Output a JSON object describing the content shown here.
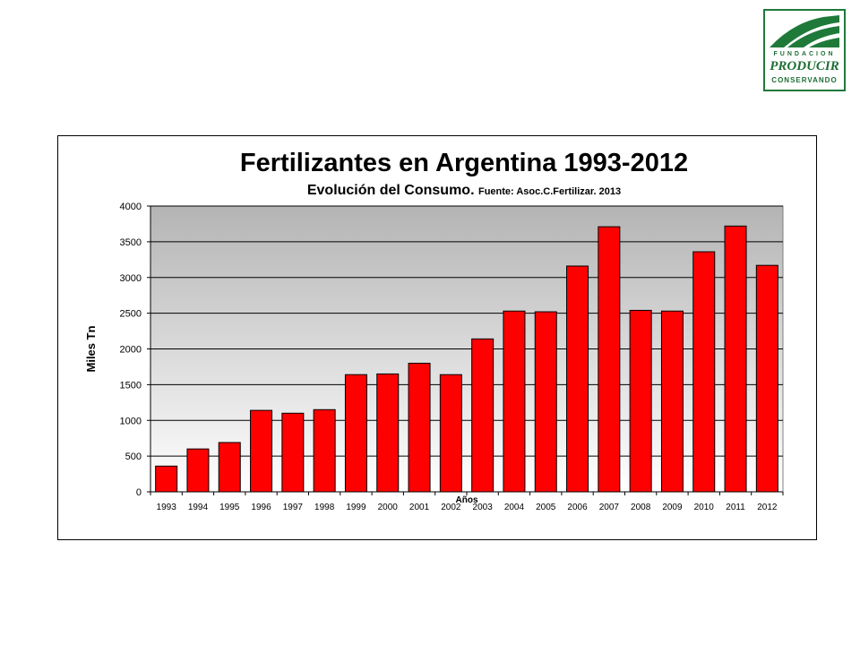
{
  "logo": {
    "line1": "FUNDACION",
    "line2": "PRODUCIR",
    "line3": "CONSERVANDO"
  },
  "chart_data": {
    "type": "bar",
    "title": "Fertilizantes en Argentina 1993-2012",
    "subtitle": "Evolución del Consumo.",
    "source": "Fuente: Asoc.C.Fertilizar. 2013",
    "xlabel": "Años",
    "ylabel": "Miles Tn",
    "ylim": [
      0,
      4000
    ],
    "yticks": [
      0,
      500,
      1000,
      1500,
      2000,
      2500,
      3000,
      3500,
      4000
    ],
    "grid": true,
    "legend": "none",
    "categories": [
      "1993",
      "1994",
      "1995",
      "1996",
      "1997",
      "1998",
      "1999",
      "2000",
      "2001",
      "2002",
      "2003",
      "2004",
      "2005",
      "2006",
      "2007",
      "2008",
      "2009",
      "2010",
      "2011",
      "2012"
    ],
    "values": [
      360,
      600,
      690,
      1140,
      1100,
      1150,
      1640,
      1650,
      1800,
      1640,
      2140,
      2530,
      2520,
      3160,
      3710,
      2540,
      2530,
      3360,
      3720,
      3170
    ],
    "colors": {
      "bar": "#ff0000",
      "bar_stroke": "#000000",
      "plot_bg_top": "#b4b4b4",
      "plot_bg_bottom": "#ffffff",
      "grid": "#000000"
    }
  }
}
